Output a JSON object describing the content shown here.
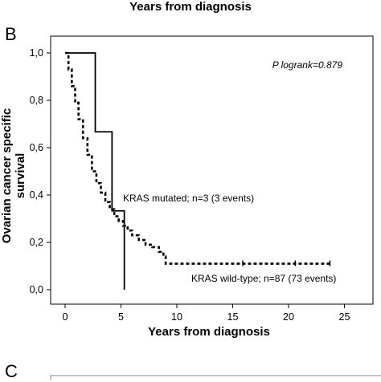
{
  "header": {
    "x_title_previous_panel": "Years from diagnosis"
  },
  "panels": {
    "current_letter": "B",
    "next_letter": "C"
  },
  "colors": {
    "line": "#000000",
    "background": "#ffffff"
  },
  "chart_data": {
    "type": "line",
    "subtype": "kaplan-meier step curve",
    "xlabel": "Years from diagnosis",
    "ylabel": "Ovarian cancer specific survival",
    "xlim": [
      -2,
      25.5
    ],
    "ylim": [
      0,
      1.0
    ],
    "xticks": [
      0,
      5,
      10,
      15,
      20,
      25
    ],
    "yticks": [
      0.0,
      0.2,
      0.4,
      0.6,
      0.8,
      1.0
    ],
    "ytick_labels": [
      "0,0",
      "0,2",
      "0,4",
      "0,6",
      "0,8",
      "1,0"
    ],
    "annotation": "P logrank=0.879",
    "grid": false,
    "series": [
      {
        "name": "KRAS mutated; n=3 (3 events)",
        "style": "solid",
        "x": [
          0,
          2.7,
          2.7,
          4.2,
          4.2,
          5.3,
          5.3
        ],
        "y": [
          1.0,
          1.0,
          0.667,
          0.667,
          0.333,
          0.333,
          0.0
        ]
      },
      {
        "name": "KRAS wild-type; n=87 (73 events)",
        "style": "dashed",
        "x": [
          0,
          0.3,
          0.6,
          0.9,
          1.2,
          1.6,
          2.0,
          2.4,
          2.8,
          3.2,
          3.6,
          4.0,
          4.4,
          4.8,
          5.2,
          5.6,
          6.0,
          6.6,
          7.2,
          7.8,
          8.4,
          8.8,
          9.0,
          9.0,
          23.7
        ],
        "y": [
          1.0,
          0.93,
          0.86,
          0.79,
          0.72,
          0.64,
          0.57,
          0.5,
          0.45,
          0.41,
          0.37,
          0.34,
          0.31,
          0.29,
          0.27,
          0.25,
          0.23,
          0.21,
          0.19,
          0.18,
          0.16,
          0.14,
          0.13,
          0.11,
          0.11
        ]
      }
    ],
    "censor_x": [
      15.9,
      20.6,
      23.7
    ],
    "censor_y": 0.11
  }
}
